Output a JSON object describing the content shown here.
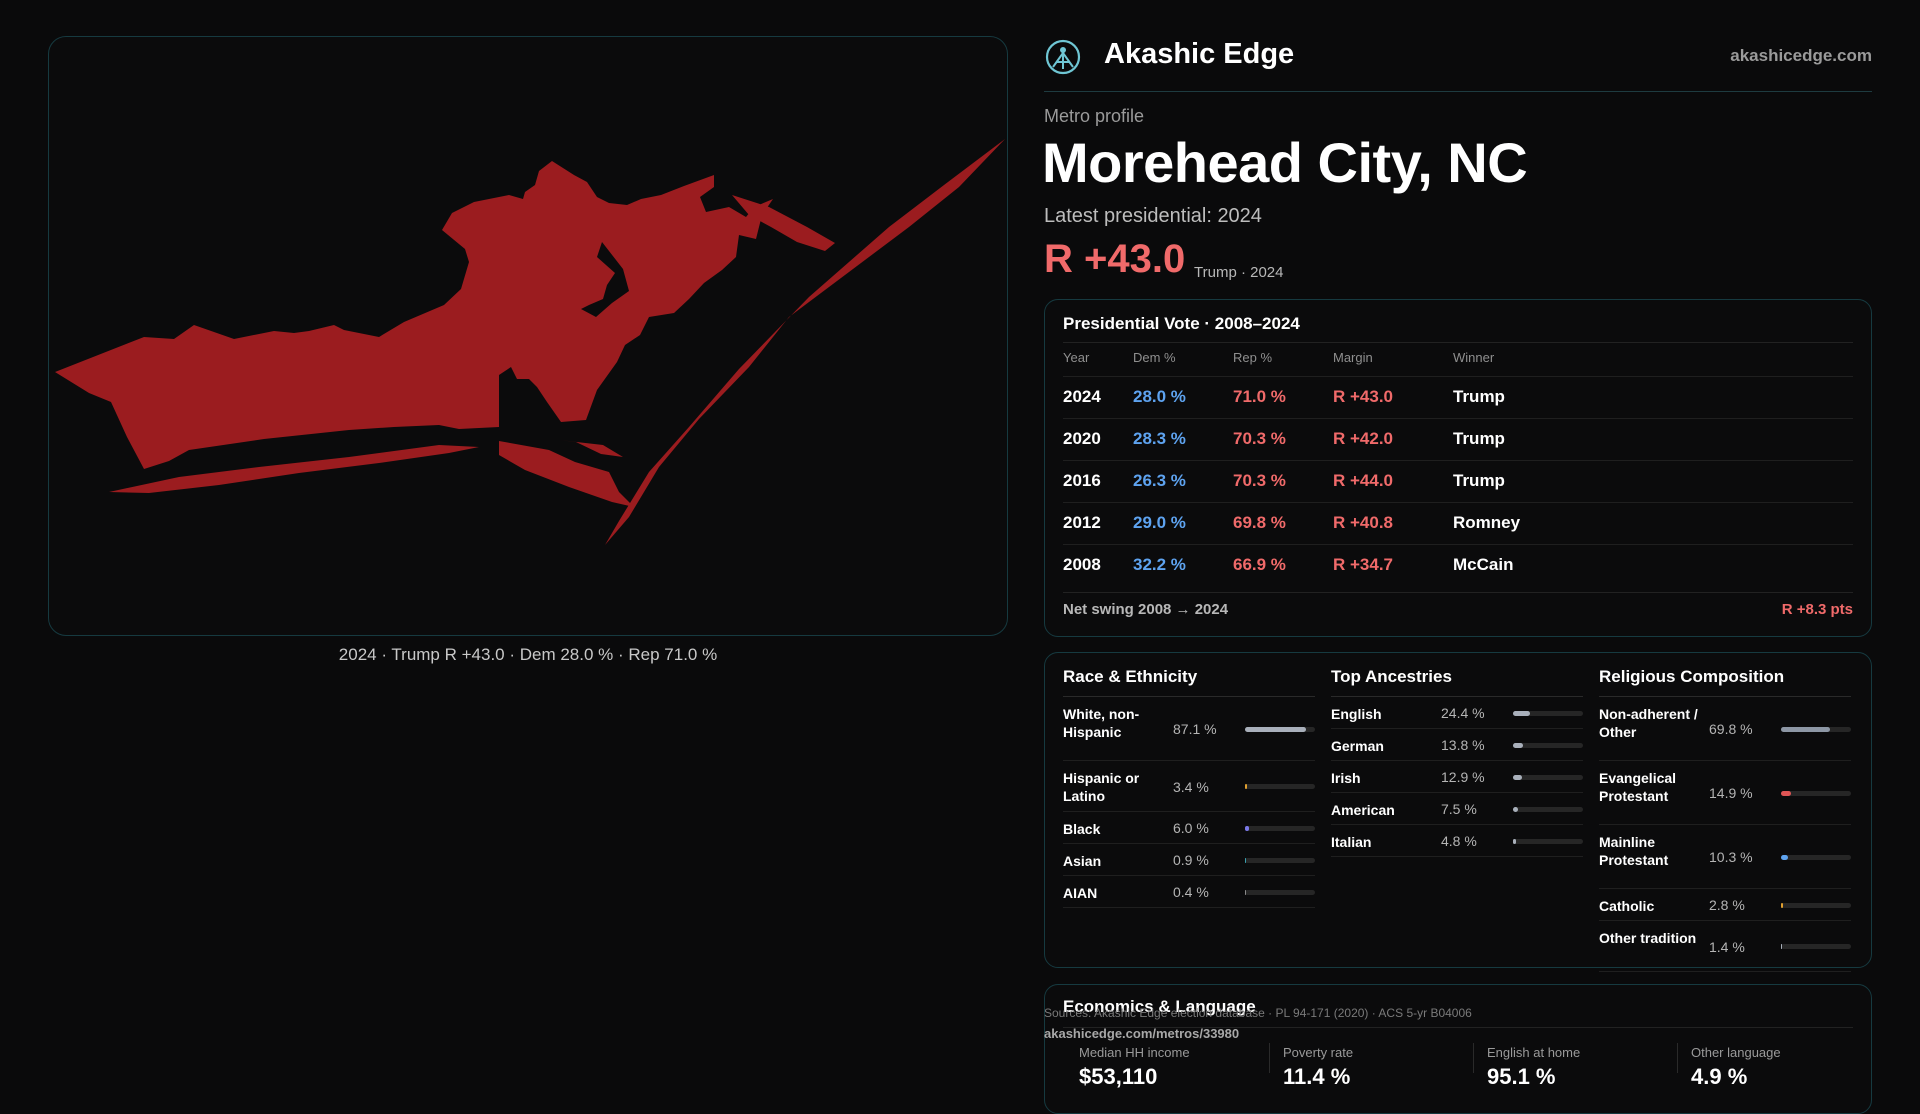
{
  "brand": {
    "name": "Akashic Edge",
    "url": "akashicedge.com"
  },
  "profile": {
    "eyebrow": "Metro profile",
    "title": "Morehead City, NC",
    "latest_label": "Latest presidential: 2024",
    "latest_margin": "R +43.0",
    "latest_sub": "Trump · 2024"
  },
  "map": {
    "fill_color": "#9b1c1f",
    "caption": "2024 · Trump R +43.0 · Dem 28.0 % · Rep 71.0 %"
  },
  "vote_table": {
    "title": "Presidential Vote · 2008–2024",
    "headers": {
      "year": "Year",
      "dem": "Dem %",
      "rep": "Rep %",
      "margin": "Margin",
      "winner": "Winner"
    },
    "rows": [
      {
        "year": "2024",
        "dem": "28.0 %",
        "rep": "71.0 %",
        "margin": "R +43.0",
        "winner": "Trump"
      },
      {
        "year": "2020",
        "dem": "28.3 %",
        "rep": "70.3 %",
        "margin": "R +42.0",
        "winner": "Trump"
      },
      {
        "year": "2016",
        "dem": "26.3 %",
        "rep": "70.3 %",
        "margin": "R +44.0",
        "winner": "Trump"
      },
      {
        "year": "2012",
        "dem": "29.0 %",
        "rep": "69.8 %",
        "margin": "R +40.8",
        "winner": "Romney"
      },
      {
        "year": "2008",
        "dem": "32.2 %",
        "rep": "66.9 %",
        "margin": "R +34.7",
        "winner": "McCain"
      }
    ],
    "swing_label": "Net swing 2008 → 2024",
    "swing_value": "R +8.3 pts"
  },
  "demographics": {
    "race": {
      "title": "Race & Ethnicity",
      "items": [
        {
          "label": "White, non-Hispanic",
          "value": "87.1 %",
          "pct": 87.1,
          "color": "#a9b0bb"
        },
        {
          "label": "Hispanic or Latino",
          "value": "3.4 %",
          "pct": 3.4,
          "color": "#e0a030"
        },
        {
          "label": "Black",
          "value": "6.0 %",
          "pct": 6.0,
          "color": "#7a78e8"
        },
        {
          "label": "Asian",
          "value": "0.9 %",
          "pct": 0.9,
          "color": "#3aa0b0"
        },
        {
          "label": "AIAN",
          "value": "0.4 %",
          "pct": 0.4,
          "color": "#8a8a8a"
        }
      ]
    },
    "ancestry": {
      "title": "Top Ancestries",
      "items": [
        {
          "label": "English",
          "value": "24.4 %",
          "pct": 24.4,
          "color": "#a9b0bb"
        },
        {
          "label": "German",
          "value": "13.8 %",
          "pct": 13.8,
          "color": "#a9b0bb"
        },
        {
          "label": "Irish",
          "value": "12.9 %",
          "pct": 12.9,
          "color": "#a9b0bb"
        },
        {
          "label": "American",
          "value": "7.5 %",
          "pct": 7.5,
          "color": "#a9b0bb"
        },
        {
          "label": "Italian",
          "value": "4.8 %",
          "pct": 4.8,
          "color": "#a9b0bb"
        }
      ]
    },
    "religion": {
      "title": "Religious Composition",
      "items": [
        {
          "label": "Non-adherent / Other",
          "value": "69.8 %",
          "pct": 69.8,
          "color": "#8d97a5"
        },
        {
          "label": "Evangelical Protestant",
          "value": "14.9 %",
          "pct": 14.9,
          "color": "#e05555"
        },
        {
          "label": "Mainline Protestant",
          "value": "10.3 %",
          "pct": 10.3,
          "color": "#5ea3f0"
        },
        {
          "label": "Catholic",
          "value": "2.8 %",
          "pct": 2.8,
          "color": "#e0a030"
        },
        {
          "label": "Other tradition",
          "value": "1.4 %",
          "pct": 1.4,
          "color": "#a9b0bb"
        }
      ]
    }
  },
  "economics": {
    "title": "Economics & Language",
    "metrics": [
      {
        "label": "Median HH income",
        "value": "$53,110"
      },
      {
        "label": "Poverty rate",
        "value": "11.4 %"
      },
      {
        "label": "English at home",
        "value": "95.1 %"
      },
      {
        "label": "Other language",
        "value": "4.9 %"
      }
    ]
  },
  "footer": {
    "sources": "Sources: Akashic Edge election database · PL 94-171 (2020) · ACS 5-yr B04006",
    "url": "akashicedge.com/metros/33980"
  }
}
